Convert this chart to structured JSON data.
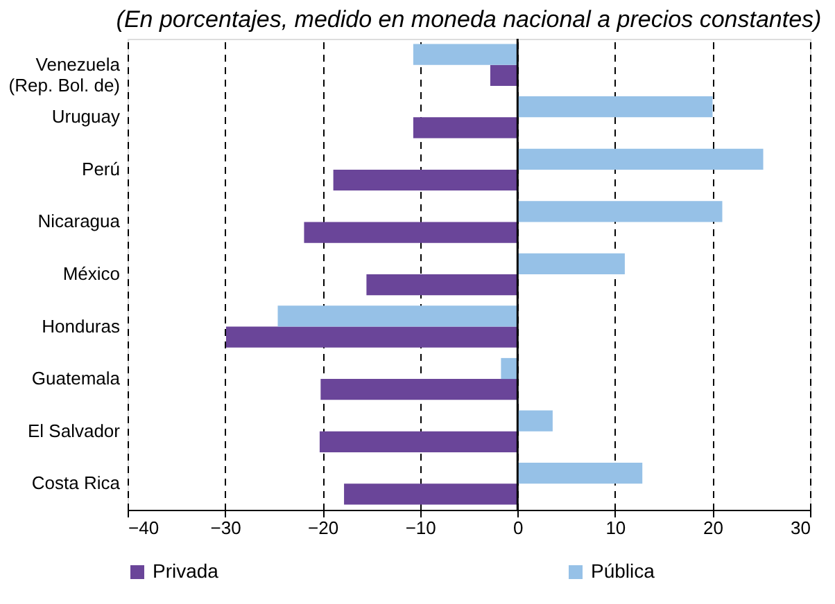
{
  "chart_data": {
    "type": "bar",
    "orientation": "horizontal",
    "title": "(En porcentajes, medido en moneda nacional a precios constantes)",
    "categories": [
      "Venezuela\n(Rep. Bol. de)",
      "Uruguay",
      "Perú",
      "Nicaragua",
      "México",
      "Honduras",
      "Guatemala",
      "El Salvador",
      "Costa Rica"
    ],
    "series": [
      {
        "name": "Privada",
        "color": "#6a4599",
        "values": [
          -2.8,
          -10.7,
          -18.9,
          -21.9,
          -15.5,
          -29.9,
          -20.2,
          -20.3,
          -17.8
        ]
      },
      {
        "name": "Pública",
        "color": "#96c1e7",
        "values": [
          -10.7,
          20.0,
          25.2,
          21.0,
          11.0,
          -24.6,
          -1.7,
          3.6,
          12.8
        ]
      }
    ],
    "xlim": [
      -40,
      30
    ],
    "xticks": [
      -40,
      -30,
      -20,
      -10,
      0,
      10,
      20,
      30
    ],
    "ref_lines": [
      {
        "axis": "x",
        "value": 0,
        "color": "#000000"
      }
    ],
    "grid": "x",
    "legend": "bottom"
  }
}
